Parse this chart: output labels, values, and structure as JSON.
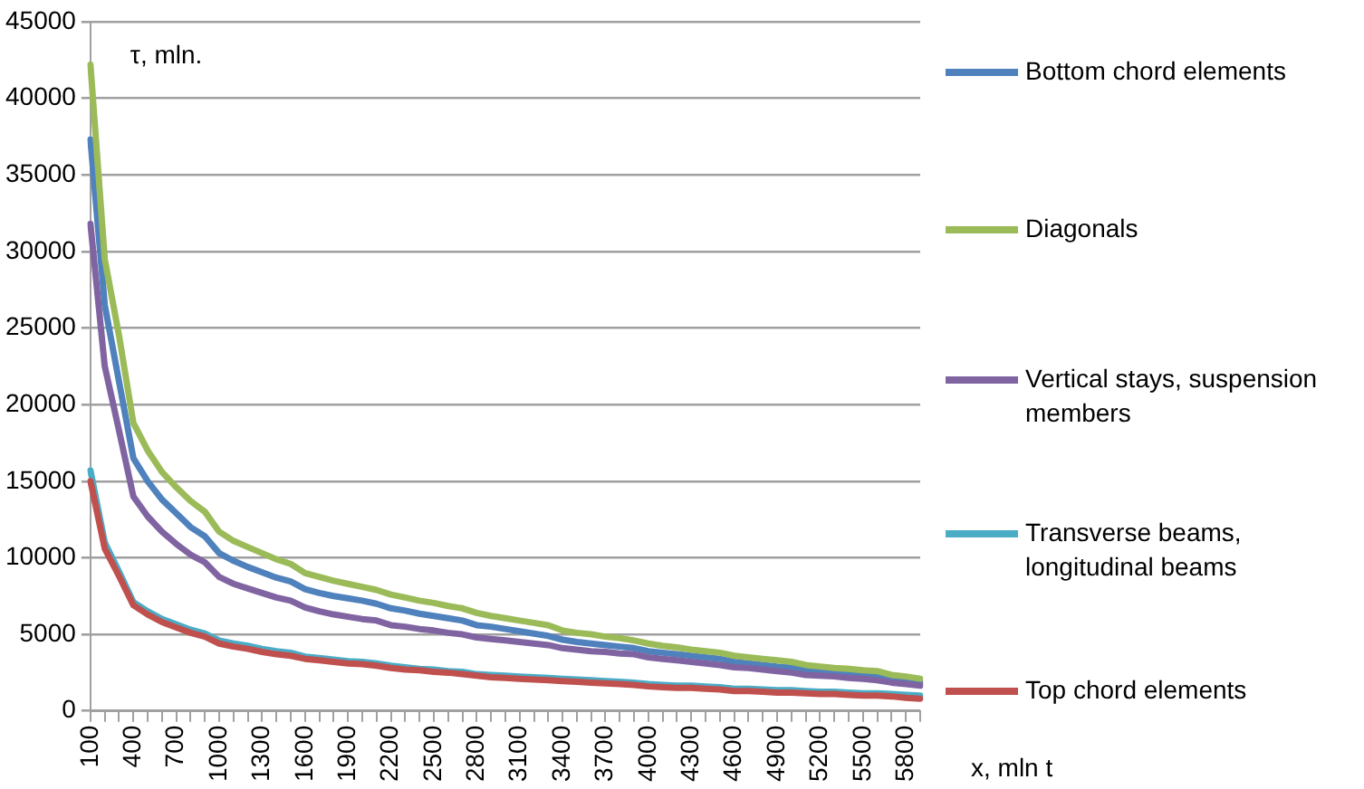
{
  "chart_data": {
    "type": "line",
    "xlabel": "x, mln t",
    "ylabel": "τ, mln.",
    "categories": [
      "100",
      null,
      null,
      "400",
      null,
      null,
      "700",
      null,
      null,
      "1000",
      null,
      null,
      "1300",
      null,
      null,
      "1600",
      null,
      null,
      "1900",
      null,
      null,
      "2200",
      null,
      null,
      "2500",
      null,
      null,
      "2800",
      null,
      null,
      "3100",
      null,
      null,
      "3400",
      null,
      null,
      "3700",
      null,
      null,
      "4000",
      null,
      null,
      "4300",
      null,
      null,
      "4600",
      null,
      null,
      "4900",
      null,
      null,
      "5200",
      null,
      null,
      "5500",
      null,
      null,
      "5800",
      null
    ],
    "series": [
      {
        "name": "Bottom chord elements",
        "color": "#4f81bd",
        "values": [
          37300,
          26500,
          21500,
          16500,
          15000,
          13800,
          12900,
          12000,
          11400,
          10300,
          9800,
          9400,
          9050,
          8700,
          8450,
          7950,
          7700,
          7500,
          7350,
          7200,
          7000,
          6700,
          6550,
          6350,
          6200,
          6050,
          5900,
          5600,
          5500,
          5350,
          5200,
          5050,
          4900,
          4650,
          4500,
          4400,
          4300,
          4200,
          4100,
          3900,
          3800,
          3700,
          3600,
          3500,
          3400,
          3200,
          3100,
          3000,
          2900,
          2850,
          2700,
          2600,
          2500,
          2450,
          2350,
          2300,
          2100,
          1950,
          1850
        ]
      },
      {
        "name": "Diagonals",
        "color": "#9bbb59",
        "values": [
          42200,
          29500,
          24500,
          18800,
          17000,
          15600,
          14600,
          13700,
          13000,
          11700,
          11100,
          10700,
          10300,
          9900,
          9600,
          9000,
          8750,
          8500,
          8300,
          8100,
          7900,
          7600,
          7400,
          7200,
          7050,
          6850,
          6700,
          6400,
          6200,
          6050,
          5900,
          5750,
          5600,
          5250,
          5100,
          5000,
          4850,
          4750,
          4600,
          4400,
          4250,
          4150,
          4000,
          3900,
          3800,
          3600,
          3500,
          3400,
          3300,
          3200,
          3000,
          2900,
          2800,
          2750,
          2650,
          2600,
          2350,
          2250,
          2100
        ]
      },
      {
        "name": "Vertical stays, suspension members",
        "color": "#8064a2",
        "values": [
          31800,
          22500,
          18300,
          14000,
          12700,
          11700,
          10900,
          10200,
          9700,
          8750,
          8300,
          8000,
          7700,
          7400,
          7200,
          6750,
          6500,
          6300,
          6150,
          6000,
          5900,
          5600,
          5500,
          5350,
          5250,
          5100,
          5000,
          4800,
          4700,
          4600,
          4500,
          4400,
          4300,
          4100,
          4000,
          3900,
          3850,
          3750,
          3700,
          3500,
          3400,
          3300,
          3200,
          3100,
          3000,
          2850,
          2800,
          2700,
          2600,
          2500,
          2350,
          2300,
          2250,
          2150,
          2100,
          2000,
          1850,
          1750,
          1650
        ]
      },
      {
        "name": "Transverse beams, longitudinal beams",
        "color": "#4bacc6",
        "values": [
          15700,
          11000,
          9100,
          7100,
          6500,
          6000,
          5650,
          5300,
          5050,
          4600,
          4400,
          4250,
          4050,
          3900,
          3800,
          3550,
          3450,
          3350,
          3250,
          3200,
          3100,
          2950,
          2850,
          2750,
          2700,
          2600,
          2550,
          2400,
          2350,
          2300,
          2250,
          2200,
          2150,
          2100,
          2050,
          2000,
          1950,
          1900,
          1850,
          1750,
          1700,
          1650,
          1650,
          1600,
          1550,
          1450,
          1450,
          1400,
          1350,
          1350,
          1300,
          1250,
          1250,
          1200,
          1150,
          1150,
          1100,
          1050,
          1000
        ]
      },
      {
        "name": "Top chord elements",
        "color": "#c0504d",
        "values": [
          15000,
          10600,
          8800,
          6900,
          6300,
          5800,
          5450,
          5100,
          4850,
          4400,
          4200,
          4050,
          3850,
          3700,
          3600,
          3400,
          3300,
          3200,
          3100,
          3050,
          2950,
          2800,
          2700,
          2650,
          2550,
          2500,
          2400,
          2300,
          2200,
          2150,
          2100,
          2050,
          2000,
          1950,
          1900,
          1850,
          1800,
          1750,
          1700,
          1600,
          1550,
          1500,
          1500,
          1450,
          1400,
          1300,
          1300,
          1250,
          1200,
          1200,
          1150,
          1100,
          1100,
          1050,
          1000,
          1000,
          950,
          850,
          800
        ]
      }
    ],
    "ylim": [
      0,
      45000
    ],
    "yticks": [
      0,
      5000,
      10000,
      15000,
      20000,
      25000,
      30000,
      35000,
      40000,
      45000
    ],
    "grid": "y",
    "legend": "right",
    "marker": "none",
    "line_style": "solid"
  }
}
